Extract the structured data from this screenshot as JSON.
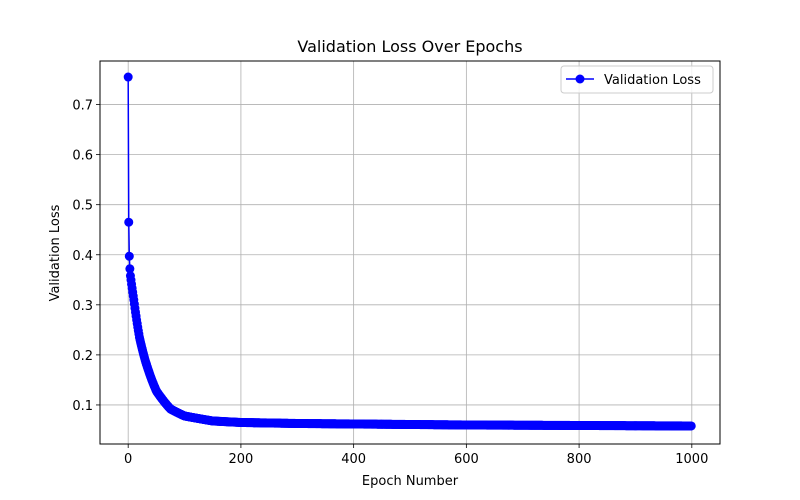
{
  "chart_data": {
    "type": "line",
    "title": "Validation Loss Over Epochs",
    "xlabel": "Epoch Number",
    "ylabel": "Validation Loss",
    "xlim": [
      -50,
      1050
    ],
    "ylim": [
      0.022,
      0.787
    ],
    "xticks": [
      0,
      200,
      400,
      600,
      800,
      1000
    ],
    "yticks": [
      0.1,
      0.2,
      0.3,
      0.4,
      0.5,
      0.6,
      0.7
    ],
    "grid": true,
    "legend_position": "top-right",
    "series": [
      {
        "name": "Validation Loss",
        "color": "#0000ff",
        "marker": "circle",
        "x_range": [
          0,
          999
        ],
        "sample_points": [
          {
            "x": 0,
            "y": 0.755
          },
          {
            "x": 1,
            "y": 0.465
          },
          {
            "x": 2,
            "y": 0.397
          },
          {
            "x": 3,
            "y": 0.372
          },
          {
            "x": 4,
            "y": 0.358
          },
          {
            "x": 10,
            "y": 0.31
          },
          {
            "x": 20,
            "y": 0.235
          },
          {
            "x": 30,
            "y": 0.19
          },
          {
            "x": 50,
            "y": 0.128
          },
          {
            "x": 75,
            "y": 0.092
          },
          {
            "x": 100,
            "y": 0.078
          },
          {
            "x": 150,
            "y": 0.068
          },
          {
            "x": 200,
            "y": 0.065
          },
          {
            "x": 300,
            "y": 0.063
          },
          {
            "x": 400,
            "y": 0.062
          },
          {
            "x": 600,
            "y": 0.06
          },
          {
            "x": 800,
            "y": 0.059
          },
          {
            "x": 999,
            "y": 0.058
          }
        ]
      }
    ]
  }
}
